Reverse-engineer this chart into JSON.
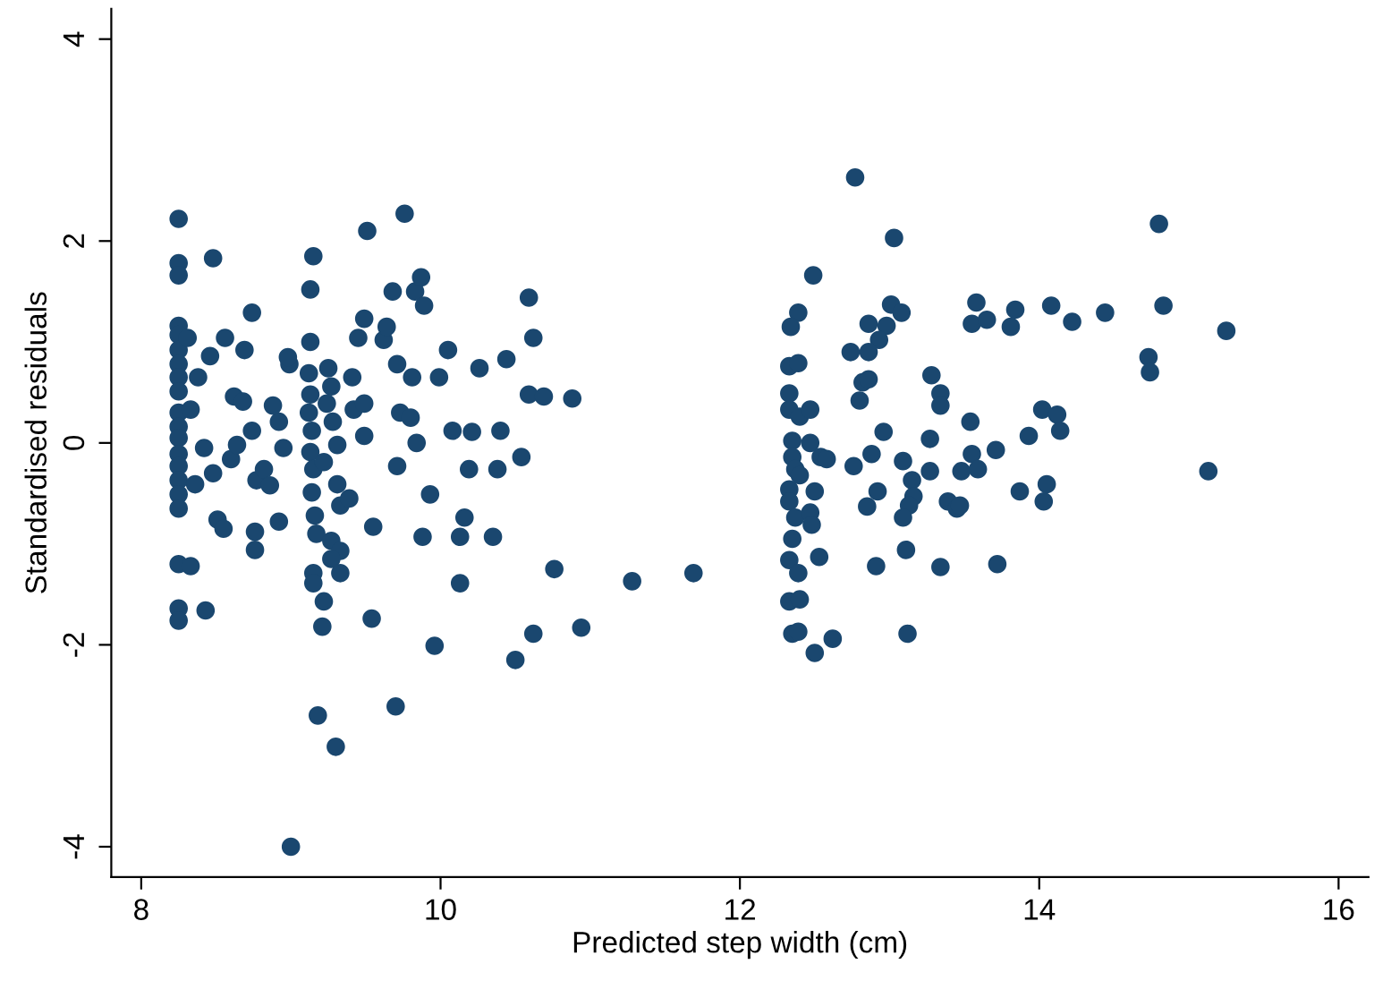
{
  "chart_data": {
    "type": "scatter",
    "xlabel": "Predicted step width (cm)",
    "ylabel": "Standardised residuals",
    "xlim": [
      7.8,
      16.2
    ],
    "ylim": [
      -4.3,
      4.3
    ],
    "xticks": [
      8,
      10,
      12,
      14,
      16
    ],
    "yticks": [
      -4,
      -2,
      0,
      2,
      4
    ],
    "grid": false,
    "marker": "circle",
    "series": [
      {
        "color": "#1a476f",
        "x": [
          8.25,
          8.25,
          8.25,
          8.25,
          8.25,
          8.25,
          8.25,
          8.25,
          8.25,
          8.25,
          8.25,
          8.25,
          8.25,
          8.25,
          8.25,
          8.25,
          8.25,
          8.25,
          8.25,
          8.25,
          8.31,
          8.33,
          8.38,
          8.36,
          8.33,
          8.46,
          8.42,
          8.48,
          8.43,
          8.48,
          8.51,
          8.55,
          8.56,
          8.6,
          8.64,
          8.62,
          8.69,
          8.74,
          8.68,
          8.77,
          8.76,
          8.76,
          8.74,
          8.82,
          8.86,
          8.92,
          8.95,
          8.92,
          8.99,
          8.98,
          9.0,
          8.88,
          9.15,
          9.13,
          9.13,
          9.12,
          9.13,
          9.12,
          9.14,
          9.13,
          9.15,
          9.14,
          9.16,
          9.17,
          9.15,
          9.15,
          9.22,
          9.21,
          9.18,
          9.3,
          9.25,
          9.27,
          9.24,
          9.28,
          9.31,
          9.22,
          9.31,
          9.33,
          9.27,
          9.33,
          9.27,
          9.33,
          9.39,
          9.41,
          9.42,
          9.49,
          9.49,
          9.45,
          9.49,
          9.51,
          9.55,
          9.54,
          9.62,
          9.64,
          9.71,
          9.7,
          9.68,
          9.73,
          9.76,
          9.71,
          9.83,
          9.81,
          9.8,
          9.84,
          9.89,
          9.93,
          9.96,
          9.88,
          9.87,
          9.99,
          10.05,
          10.08,
          10.13,
          10.13,
          10.16,
          10.21,
          10.19,
          10.26,
          10.38,
          10.35,
          10.4,
          10.44,
          10.5,
          10.54,
          10.59,
          10.59,
          10.62,
          10.62,
          10.69,
          10.76,
          10.88,
          10.94,
          11.28,
          11.69,
          12.77,
          13.03,
          12.49,
          12.39,
          12.34,
          13.01,
          13.08,
          12.86,
          12.98,
          12.93,
          12.74,
          12.86,
          13.58,
          13.55,
          13.65,
          13.84,
          13.81,
          14.08,
          14.22,
          14.44,
          14.8,
          14.83,
          15.25,
          14.73,
          14.74,
          15.13,
          12.33,
          12.39,
          12.82,
          12.86,
          12.8,
          13.28,
          13.34,
          13.34,
          12.33,
          12.33,
          12.4,
          12.47,
          13.54,
          14.02,
          14.12,
          14.14,
          13.93,
          12.96,
          13.27,
          12.35,
          12.47,
          12.54,
          12.58,
          12.35,
          12.37,
          12.4,
          12.88,
          13.09,
          12.76,
          13.27,
          13.55,
          13.71,
          13.59,
          13.48,
          13.15,
          13.16,
          13.13,
          13.09,
          12.92,
          12.85,
          12.5,
          12.33,
          12.33,
          12.37,
          12.47,
          12.48,
          12.35,
          12.33,
          12.39,
          12.53,
          13.39,
          13.45,
          13.47,
          13.87,
          14.05,
          14.03,
          12.91,
          13.11,
          13.34,
          13.72,
          12.33,
          12.4,
          12.35,
          12.39,
          12.62,
          12.5,
          13.12
        ],
        "values": [
          2.22,
          1.78,
          1.66,
          1.16,
          1.07,
          0.92,
          0.78,
          0.65,
          0.51,
          0.3,
          0.16,
          0.05,
          -0.11,
          -0.23,
          -0.37,
          -0.51,
          -0.65,
          -1.2,
          -1.64,
          -1.76,
          1.04,
          0.33,
          0.65,
          -0.41,
          -1.22,
          0.86,
          -0.05,
          1.83,
          -1.66,
          -0.3,
          -0.76,
          -0.85,
          1.04,
          -0.16,
          -0.02,
          0.46,
          0.92,
          1.29,
          0.41,
          -0.37,
          -0.88,
          -1.06,
          0.12,
          -0.26,
          -0.42,
          0.21,
          -0.05,
          -0.78,
          0.78,
          0.85,
          -4.0,
          0.37,
          1.85,
          1.52,
          1.0,
          0.69,
          0.48,
          0.3,
          0.12,
          -0.09,
          -0.26,
          -0.49,
          -0.72,
          -0.9,
          -1.29,
          -1.39,
          -1.57,
          -1.82,
          -2.7,
          -3.01,
          0.74,
          0.56,
          0.39,
          0.21,
          -0.02,
          -0.19,
          -0.41,
          -0.62,
          -0.97,
          -1.07,
          -1.15,
          -1.29,
          -0.55,
          0.65,
          0.33,
          0.39,
          0.07,
          1.04,
          1.23,
          2.1,
          -0.83,
          -1.74,
          1.02,
          1.15,
          -0.23,
          -2.61,
          1.5,
          0.3,
          2.27,
          0.78,
          1.5,
          0.65,
          0.25,
          0.0,
          1.36,
          -0.51,
          -2.01,
          -0.93,
          1.64,
          0.65,
          0.92,
          0.12,
          -0.93,
          -1.39,
          -0.74,
          0.11,
          -0.26,
          0.74,
          -0.26,
          -0.93,
          0.12,
          0.83,
          -2.15,
          -0.14,
          1.44,
          0.48,
          1.04,
          -1.89,
          0.46,
          -1.25,
          0.44,
          -1.83,
          -1.37,
          -1.29,
          2.63,
          2.03,
          1.66,
          1.29,
          1.15,
          1.37,
          1.29,
          1.18,
          1.16,
          1.02,
          0.9,
          0.9,
          1.39,
          1.18,
          1.22,
          1.32,
          1.15,
          1.36,
          1.2,
          1.29,
          2.17,
          1.36,
          1.11,
          0.85,
          0.7,
          -0.28,
          0.76,
          0.79,
          0.6,
          0.63,
          0.42,
          0.67,
          0.49,
          0.37,
          0.49,
          0.33,
          0.26,
          0.33,
          0.21,
          0.33,
          0.28,
          0.12,
          0.07,
          0.11,
          0.04,
          0.02,
          0.0,
          -0.14,
          -0.16,
          -0.14,
          -0.26,
          -0.32,
          -0.11,
          -0.18,
          -0.23,
          -0.28,
          -0.11,
          -0.07,
          -0.26,
          -0.28,
          -0.37,
          -0.53,
          -0.62,
          -0.74,
          -0.48,
          -0.63,
          -0.48,
          -0.46,
          -0.58,
          -0.74,
          -0.69,
          -0.81,
          -0.95,
          -1.16,
          -1.29,
          -1.13,
          -0.58,
          -0.65,
          -0.62,
          -0.48,
          -0.41,
          -0.58,
          -1.22,
          -1.06,
          -1.23,
          -1.2,
          -1.57,
          -1.55,
          -1.89,
          -1.87,
          -1.94,
          -2.08,
          -1.89
        ]
      }
    ]
  }
}
